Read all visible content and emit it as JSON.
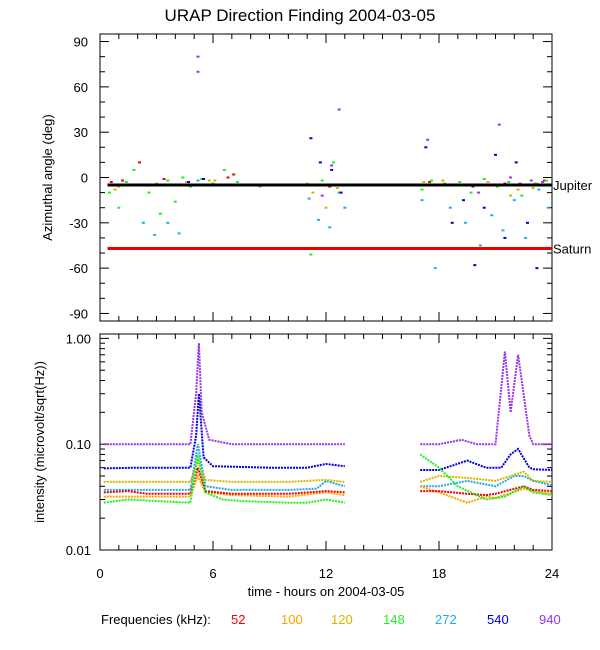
{
  "title": "URAP Direction Finding  2004-03-05",
  "legend": {
    "label": "Frequencies (kHz):",
    "items": [
      {
        "name": "52",
        "color": "#ee0000"
      },
      {
        "name": "100",
        "color": "#ffa000"
      },
      {
        "name": "120",
        "color": "#d4b800"
      },
      {
        "name": "148",
        "color": "#22ee22"
      },
      {
        "name": "272",
        "color": "#22aaee"
      },
      {
        "name": "540",
        "color": "#0000dd"
      },
      {
        "name": "940",
        "color": "#9933ee"
      }
    ]
  },
  "chart_data": [
    {
      "type": "scatter",
      "title": "URAP Direction Finding  2004-03-05",
      "ylabel": "Azimuthal angle (deg)",
      "xlim": [
        0,
        24
      ],
      "ylim": [
        -95,
        95
      ],
      "yticks": [
        90,
        60,
        30,
        0,
        -30,
        -60,
        -90
      ],
      "ytick_labels": [
        "90",
        "60",
        "30",
        "0",
        "-30",
        "-60",
        "-90"
      ],
      "reference_lines": [
        {
          "name": "Jupiter",
          "y": -5,
          "color": "#000000"
        },
        {
          "name": "Saturn",
          "y": -47,
          "color": "#ee0000"
        }
      ],
      "series": [
        {
          "name": "52",
          "color": "#ee0000",
          "points": [
            [
              0.6,
              -3
            ],
            [
              1.2,
              -2
            ],
            [
              2.1,
              10
            ],
            [
              3.4,
              -1
            ],
            [
              6.8,
              0
            ],
            [
              7.1,
              2
            ],
            [
              12.2,
              -6
            ],
            [
              17.5,
              -3
            ],
            [
              19.8,
              -6
            ],
            [
              21.5,
              -4
            ],
            [
              23.6,
              -2
            ]
          ]
        },
        {
          "name": "100",
          "color": "#ffa000",
          "points": [
            [
              1.0,
              -6
            ],
            [
              2.5,
              -5
            ],
            [
              4.6,
              -3
            ],
            [
              6.1,
              -2
            ],
            [
              11.3,
              -10
            ],
            [
              12.6,
              -7
            ],
            [
              18.2,
              -2
            ],
            [
              20.6,
              -3
            ],
            [
              22.2,
              -8
            ],
            [
              23.2,
              -4
            ]
          ]
        },
        {
          "name": "120",
          "color": "#d4b800",
          "points": [
            [
              0.8,
              -8
            ],
            [
              3.0,
              -4
            ],
            [
              5.8,
              -2
            ],
            [
              11.0,
              -4
            ],
            [
              12.0,
              -20
            ],
            [
              17.2,
              -3
            ],
            [
              19.0,
              -5
            ],
            [
              21.8,
              -12
            ],
            [
              23.0,
              -7
            ]
          ]
        },
        {
          "name": "148",
          "color": "#22ee22",
          "points": [
            [
              0.5,
              -10
            ],
            [
              1.0,
              -20
            ],
            [
              1.4,
              -3
            ],
            [
              1.8,
              5
            ],
            [
              2.6,
              -10
            ],
            [
              3.2,
              -24
            ],
            [
              3.6,
              -2
            ],
            [
              4.0,
              -16
            ],
            [
              4.4,
              0
            ],
            [
              4.8,
              -6
            ],
            [
              5.4,
              -1
            ],
            [
              6.0,
              -4
            ],
            [
              6.6,
              5
            ],
            [
              7.3,
              -3
            ],
            [
              8.5,
              -6
            ],
            [
              11.2,
              -51
            ],
            [
              11.8,
              -2
            ],
            [
              12.4,
              10
            ],
            [
              12.9,
              -5
            ],
            [
              17.1,
              -8
            ],
            [
              17.6,
              -2
            ],
            [
              18.3,
              -4
            ],
            [
              19.1,
              -3
            ],
            [
              19.7,
              -10
            ],
            [
              20.4,
              -1
            ],
            [
              21.1,
              -6
            ],
            [
              21.7,
              -3
            ],
            [
              22.4,
              -12
            ],
            [
              23.1,
              -4
            ],
            [
              23.7,
              -2
            ]
          ]
        },
        {
          "name": "272",
          "color": "#22aaee",
          "points": [
            [
              1.5,
              -5
            ],
            [
              2.3,
              -30
            ],
            [
              2.9,
              -38
            ],
            [
              3.6,
              -30
            ],
            [
              4.2,
              -37
            ],
            [
              5.2,
              -2
            ],
            [
              11.1,
              -14
            ],
            [
              11.6,
              -28
            ],
            [
              12.2,
              -33
            ],
            [
              12.7,
              -10
            ],
            [
              13.0,
              -20
            ],
            [
              17.1,
              -15
            ],
            [
              17.8,
              -60
            ],
            [
              18.6,
              -20
            ],
            [
              19.4,
              -30
            ],
            [
              20.2,
              -45
            ],
            [
              20.8,
              -25
            ],
            [
              21.4,
              -35
            ],
            [
              22.0,
              -15
            ],
            [
              22.6,
              -40
            ],
            [
              23.3,
              -8
            ],
            [
              23.8,
              -20
            ]
          ]
        },
        {
          "name": "540",
          "color": "#0000dd",
          "points": [
            [
              4.7,
              -3
            ],
            [
              5.5,
              -1
            ],
            [
              11.2,
              26
            ],
            [
              11.7,
              10
            ],
            [
              12.3,
              5
            ],
            [
              12.8,
              -10
            ],
            [
              17.3,
              20
            ],
            [
              18.1,
              -5
            ],
            [
              18.7,
              -30
            ],
            [
              19.3,
              -15
            ],
            [
              19.9,
              -58
            ],
            [
              20.4,
              -20
            ],
            [
              21.0,
              15
            ],
            [
              21.5,
              -40
            ],
            [
              22.1,
              10
            ],
            [
              22.7,
              -30
            ],
            [
              23.2,
              -60
            ],
            [
              23.7,
              -5
            ]
          ]
        },
        {
          "name": "940",
          "color": "#9933ee",
          "points": [
            [
              5.2,
              80
            ],
            [
              5.2,
              70
            ],
            [
              11.8,
              -12
            ],
            [
              12.3,
              8
            ],
            [
              12.7,
              45
            ],
            [
              17.4,
              25
            ],
            [
              18.5,
              -5
            ],
            [
              20.1,
              -10
            ],
            [
              21.2,
              35
            ],
            [
              21.8,
              0
            ],
            [
              22.3,
              -4
            ],
            [
              22.9,
              -2
            ],
            [
              23.5,
              -3
            ]
          ]
        }
      ]
    },
    {
      "type": "line",
      "xlabel": "time - hours on 2004-03-05",
      "ylabel": "intensity (microvolt/sqrt(Hz))",
      "scale": "log",
      "xlim": [
        0,
        24
      ],
      "ylim": [
        0.01,
        1.1
      ],
      "xticks": [
        0,
        6,
        12,
        18,
        24
      ],
      "xtick_labels": [
        "0",
        "6",
        "12",
        "18",
        "24"
      ],
      "yticks": [
        1.0,
        0.1,
        0.01
      ],
      "ytick_labels": [
        "1.00",
        "0.10",
        "0.01"
      ],
      "data_gap": [
        13.1,
        16.9
      ],
      "series": [
        {
          "name": "940",
          "color": "#9933ee",
          "x": [
            0.2,
            1.5,
            3,
            4.8,
            5.1,
            5.25,
            5.4,
            5.8,
            7,
            10,
            12,
            13,
            17,
            18,
            19.2,
            20,
            21,
            21.5,
            21.8,
            22.2,
            22.8,
            23,
            24
          ],
          "y": [
            0.1,
            0.1,
            0.1,
            0.1,
            0.3,
            0.9,
            0.2,
            0.11,
            0.1,
            0.1,
            0.1,
            0.1,
            0.1,
            0.1,
            0.11,
            0.1,
            0.1,
            0.75,
            0.2,
            0.7,
            0.12,
            0.1,
            0.1
          ]
        },
        {
          "name": "540",
          "color": "#0000dd",
          "x": [
            0.2,
            2,
            4.8,
            5.1,
            5.25,
            5.5,
            6,
            9,
            11,
            12,
            13,
            17,
            18,
            19.5,
            20.5,
            21.3,
            21.8,
            22.2,
            22.8,
            23,
            24
          ],
          "y": [
            0.059,
            0.06,
            0.06,
            0.12,
            0.3,
            0.075,
            0.062,
            0.06,
            0.06,
            0.065,
            0.062,
            0.057,
            0.057,
            0.07,
            0.06,
            0.06,
            0.08,
            0.09,
            0.06,
            0.058,
            0.057
          ]
        },
        {
          "name": "272",
          "color": "#22aaee",
          "x": [
            0.2,
            2,
            4.8,
            5.2,
            5.6,
            7,
            10,
            11.5,
            12,
            13,
            17,
            18,
            19.5,
            21,
            22,
            22.5,
            23,
            24
          ],
          "y": [
            0.037,
            0.037,
            0.037,
            0.1,
            0.04,
            0.037,
            0.037,
            0.038,
            0.045,
            0.04,
            0.04,
            0.04,
            0.045,
            0.04,
            0.05,
            0.05,
            0.045,
            0.041
          ]
        },
        {
          "name": "120",
          "color": "#d4b800",
          "x": [
            0.2,
            2,
            4.8,
            5.2,
            5.6,
            7,
            10,
            12,
            13,
            17,
            18,
            19.5,
            21,
            22.5,
            23,
            24
          ],
          "y": [
            0.044,
            0.044,
            0.044,
            0.07,
            0.046,
            0.044,
            0.044,
            0.046,
            0.044,
            0.044,
            0.05,
            0.048,
            0.045,
            0.055,
            0.045,
            0.044
          ]
        },
        {
          "name": "100",
          "color": "#ffa000",
          "x": [
            0.2,
            2,
            4.8,
            5.2,
            5.6,
            7,
            10,
            12,
            13,
            17,
            18,
            19.5,
            20.5,
            21,
            22.5,
            23,
            24
          ],
          "y": [
            0.032,
            0.032,
            0.032,
            0.05,
            0.035,
            0.033,
            0.032,
            0.035,
            0.033,
            0.04,
            0.035,
            0.028,
            0.032,
            0.031,
            0.038,
            0.036,
            0.034
          ]
        },
        {
          "name": "52",
          "color": "#ee0000",
          "x": [
            0.2,
            1.5,
            2.5,
            4.8,
            5.2,
            5.6,
            7,
            10,
            12,
            13,
            17,
            18,
            19.5,
            20.5,
            21,
            22.5,
            23,
            24
          ],
          "y": [
            0.035,
            0.036,
            0.034,
            0.034,
            0.06,
            0.036,
            0.034,
            0.034,
            0.036,
            0.035,
            0.036,
            0.036,
            0.034,
            0.033,
            0.034,
            0.04,
            0.037,
            0.036
          ]
        },
        {
          "name": "148",
          "color": "#22ee22",
          "x": [
            0.2,
            1.5,
            3,
            4.8,
            5.2,
            5.6,
            6.5,
            7.5,
            10,
            11,
            12,
            13,
            17,
            18,
            19,
            20.5,
            21.5,
            22.5,
            23,
            24
          ],
          "y": [
            0.028,
            0.03,
            0.029,
            0.028,
            0.08,
            0.035,
            0.03,
            0.029,
            0.028,
            0.028,
            0.03,
            0.028,
            0.08,
            0.06,
            0.04,
            0.03,
            0.032,
            0.04,
            0.035,
            0.033
          ]
        }
      ]
    }
  ]
}
